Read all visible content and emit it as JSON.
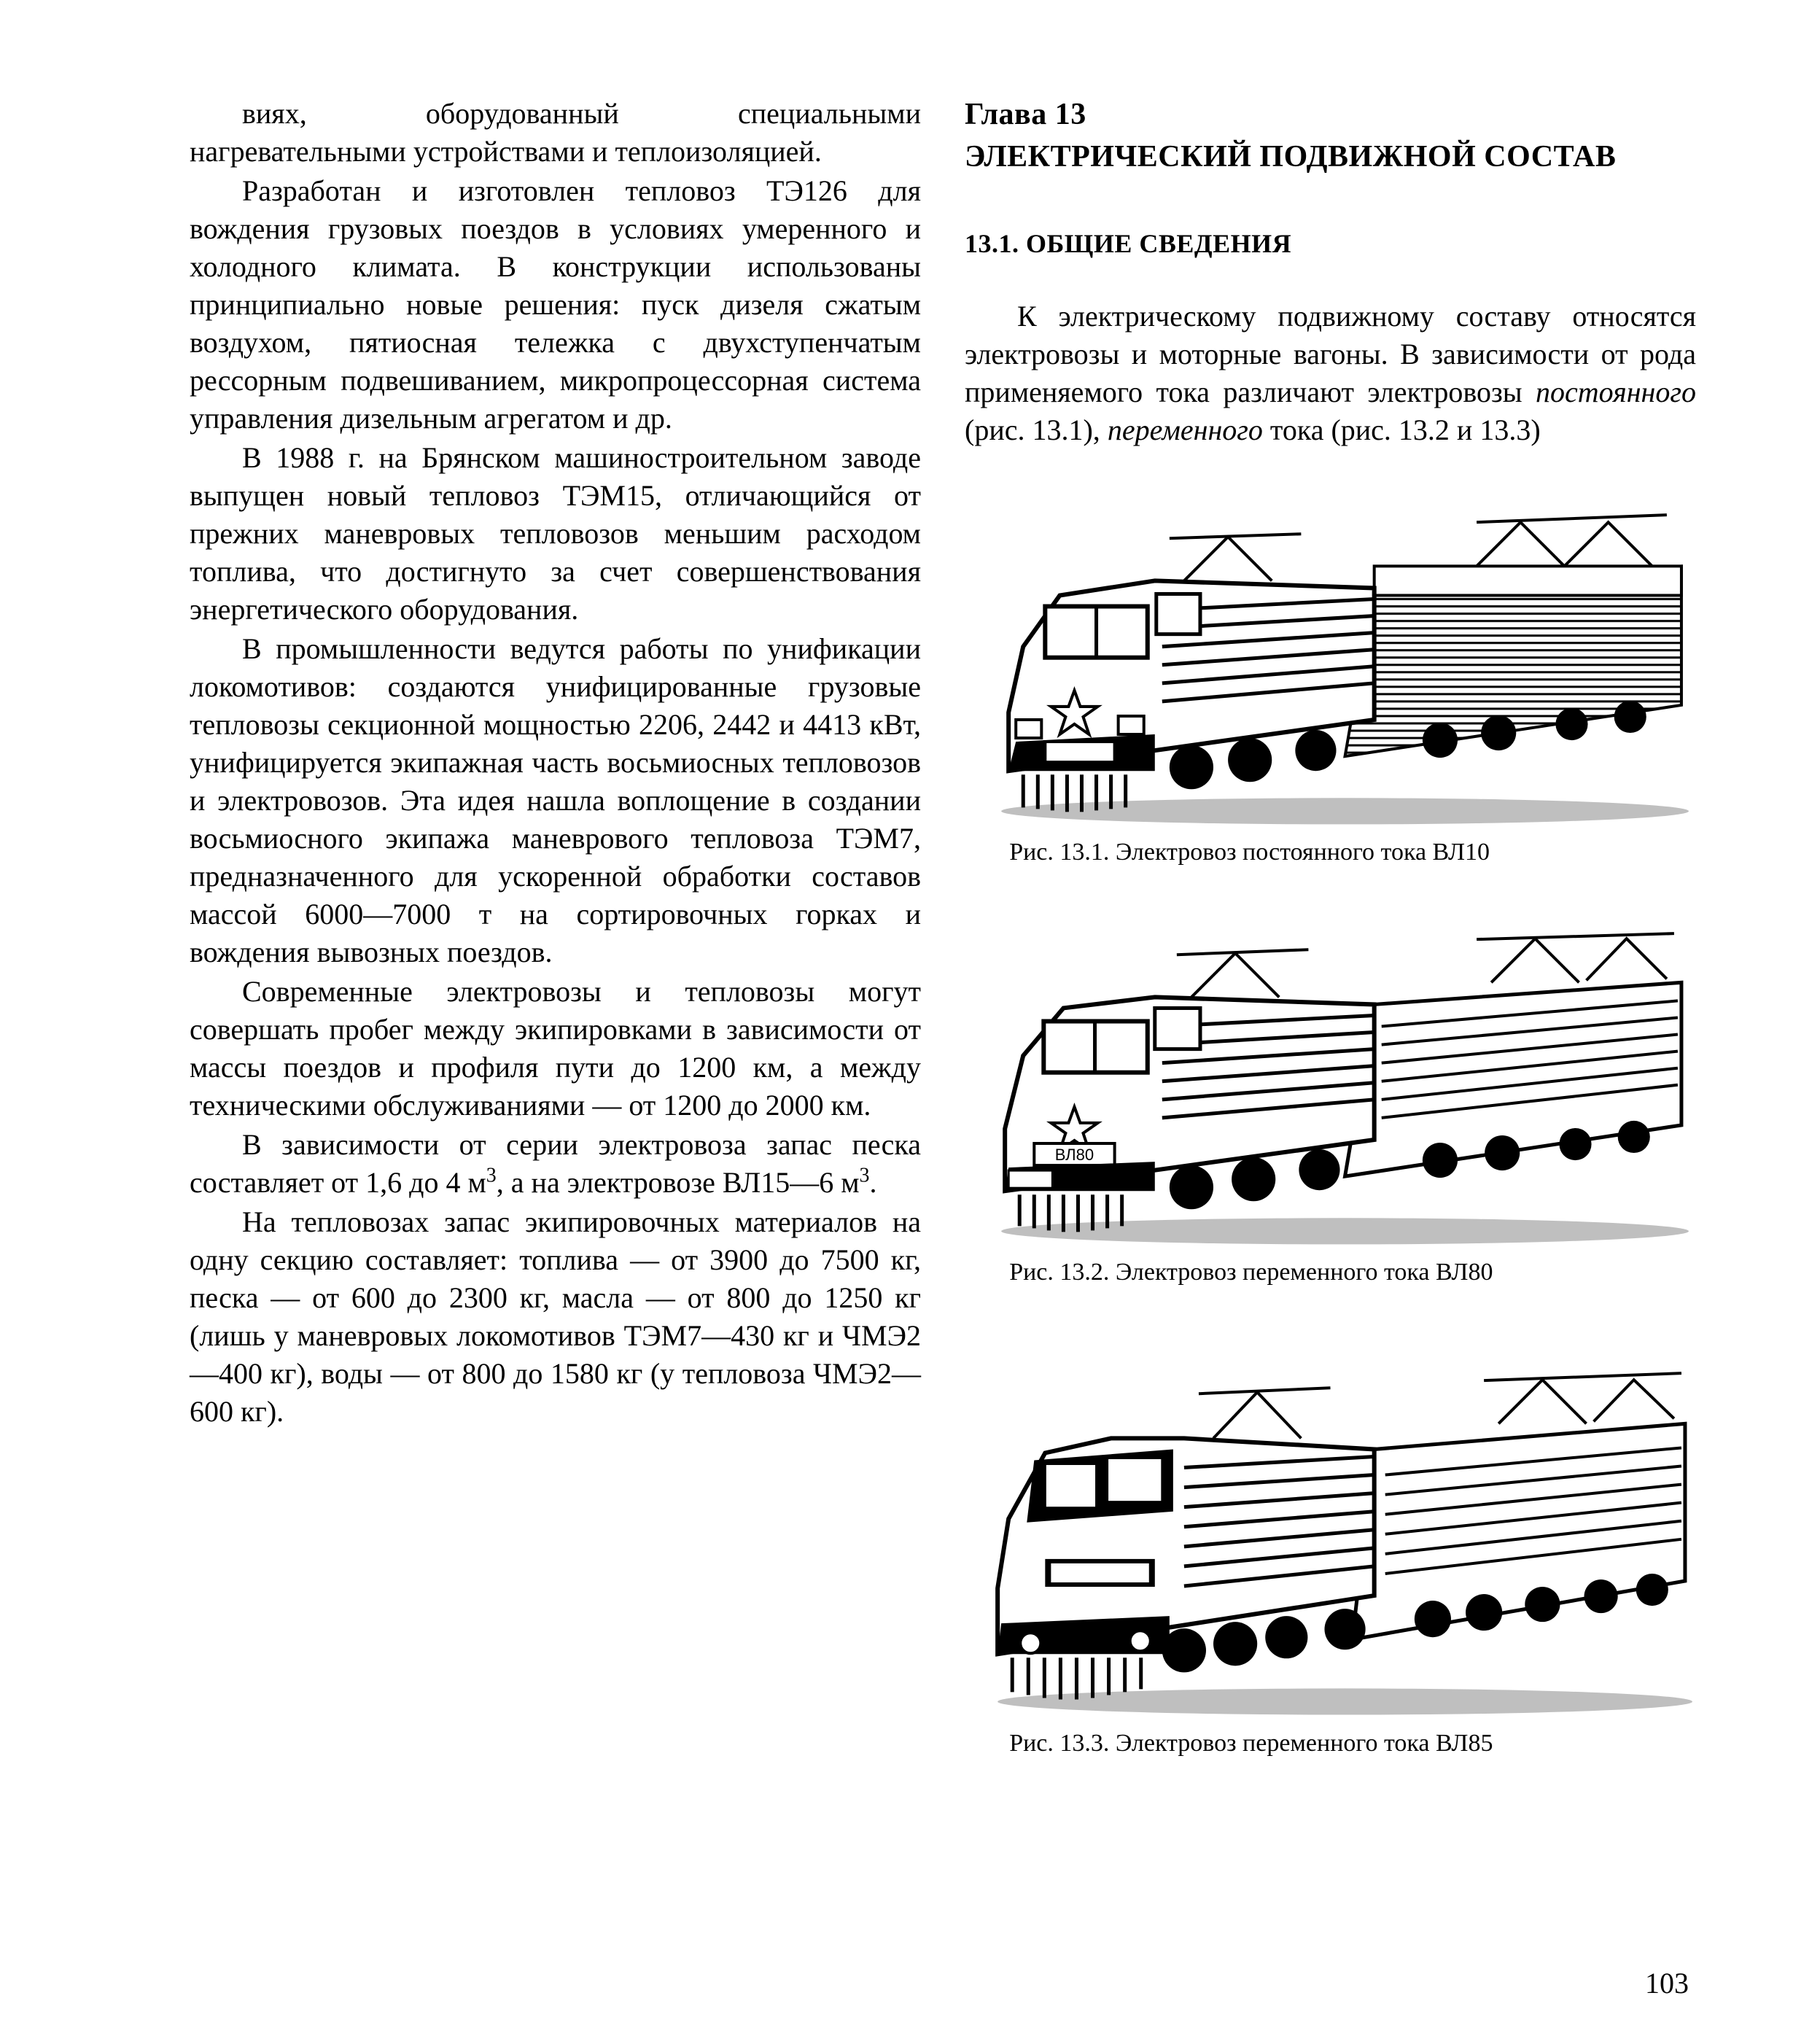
{
  "leftColumn": {
    "p1": "виях, оборудованный специальными нагревательными устройствами и теплоизоляцией.",
    "p2": "Разработан и изготовлен тепловоз ТЭ126 для вождения грузовых поездов в условиях умеренного и холодного климата. В конструкции использованы принципиально новые решения: пуск дизеля сжатым воздухом, пятиосная тележка с двухступенчатым рессорным подвешиванием, микропроцессорная система управления дизельным агрегатом и др.",
    "p3": "В 1988 г. на Брянском машиностроительном заводе выпущен новый тепловоз ТЭМ15, отличающийся от прежних маневровых тепловозов меньшим расходом топлива, что достигнуто за счет совершенствования энергетического оборудования.",
    "p4": "В промышленности ведутся работы по унификации локомотивов: создаются унифицированные грузовые тепловозы секционной мощностью 2206, 2442 и 4413 кВт, унифицируется экипажная часть восьмиосных тепловозов и электровозов. Эта идея нашла воплощение в создании восьмиосного экипажа маневрового тепловоза ТЭМ7, предназначенного для ускоренной обработки составов массой 6000—7000 т на сортировочных горках и вождения вывозных поездов.",
    "p5": "Современные электровозы и тепловозы могут совершать пробег между экипировками в зависимости от массы поездов и профиля пути до 1200 км, а между техническими обслуживаниями — от 1200 до 2000 км.",
    "p6_html": "В зависимости от серии электровоза запас песка составляет от 1,6 до 4 м<sup>3</sup>, а на электровозе ВЛ15—6 м<sup>3</sup>.",
    "p7": "На тепловозах запас экипировочных материалов на одну секцию составляет: топлива — от 3900 до 7500 кг, песка — от 600 до 2300 кг, масла — от 800 до 1250 кг (лишь у маневровых локомотивов ТЭМ7—430 кг и ЧМЭ2—400 кг), воды — от 800 до 1580 кг (у тепловоза ЧМЭ2—600 кг)."
  },
  "rightColumn": {
    "chapterLabel": "Глава 13",
    "chapterTitle": "ЭЛЕКТРИЧЕСКИЙ ПОДВИЖНОЙ СОСТАВ",
    "sectionTitle": "13.1. ОБЩИЕ СВЕДЕНИЯ",
    "intro_html": "К электрическому подвижному составу относятся электровозы и моторные вагоны. В зависимости от рода применяемого тока различают электровозы <span class=\"em\">постоянного</span> (рис. 13.1), <span class=\"em\">переменного</span> тока (рис. 13.2 и 13.3)",
    "fig1Caption": "Рис. 13.1. Электровоз постоянного тока ВЛ10",
    "fig2Caption": "Рис. 13.2. Электровоз переменного тока ВЛ80",
    "fig3Caption": "Рис. 13.3. Электровоз переменного тока ВЛ85"
  },
  "pageNumber": "103",
  "style": {
    "textColor": "#000000",
    "background": "#ffffff",
    "bodyFontSizePx": 40,
    "captionFontSizePx": 34,
    "headingFontSizePx": 42,
    "sectionFontSizePx": 36,
    "locomotiveFill": "#ffffff",
    "locomotiveStroke": "#000000",
    "hatchStroke": "#000000"
  }
}
